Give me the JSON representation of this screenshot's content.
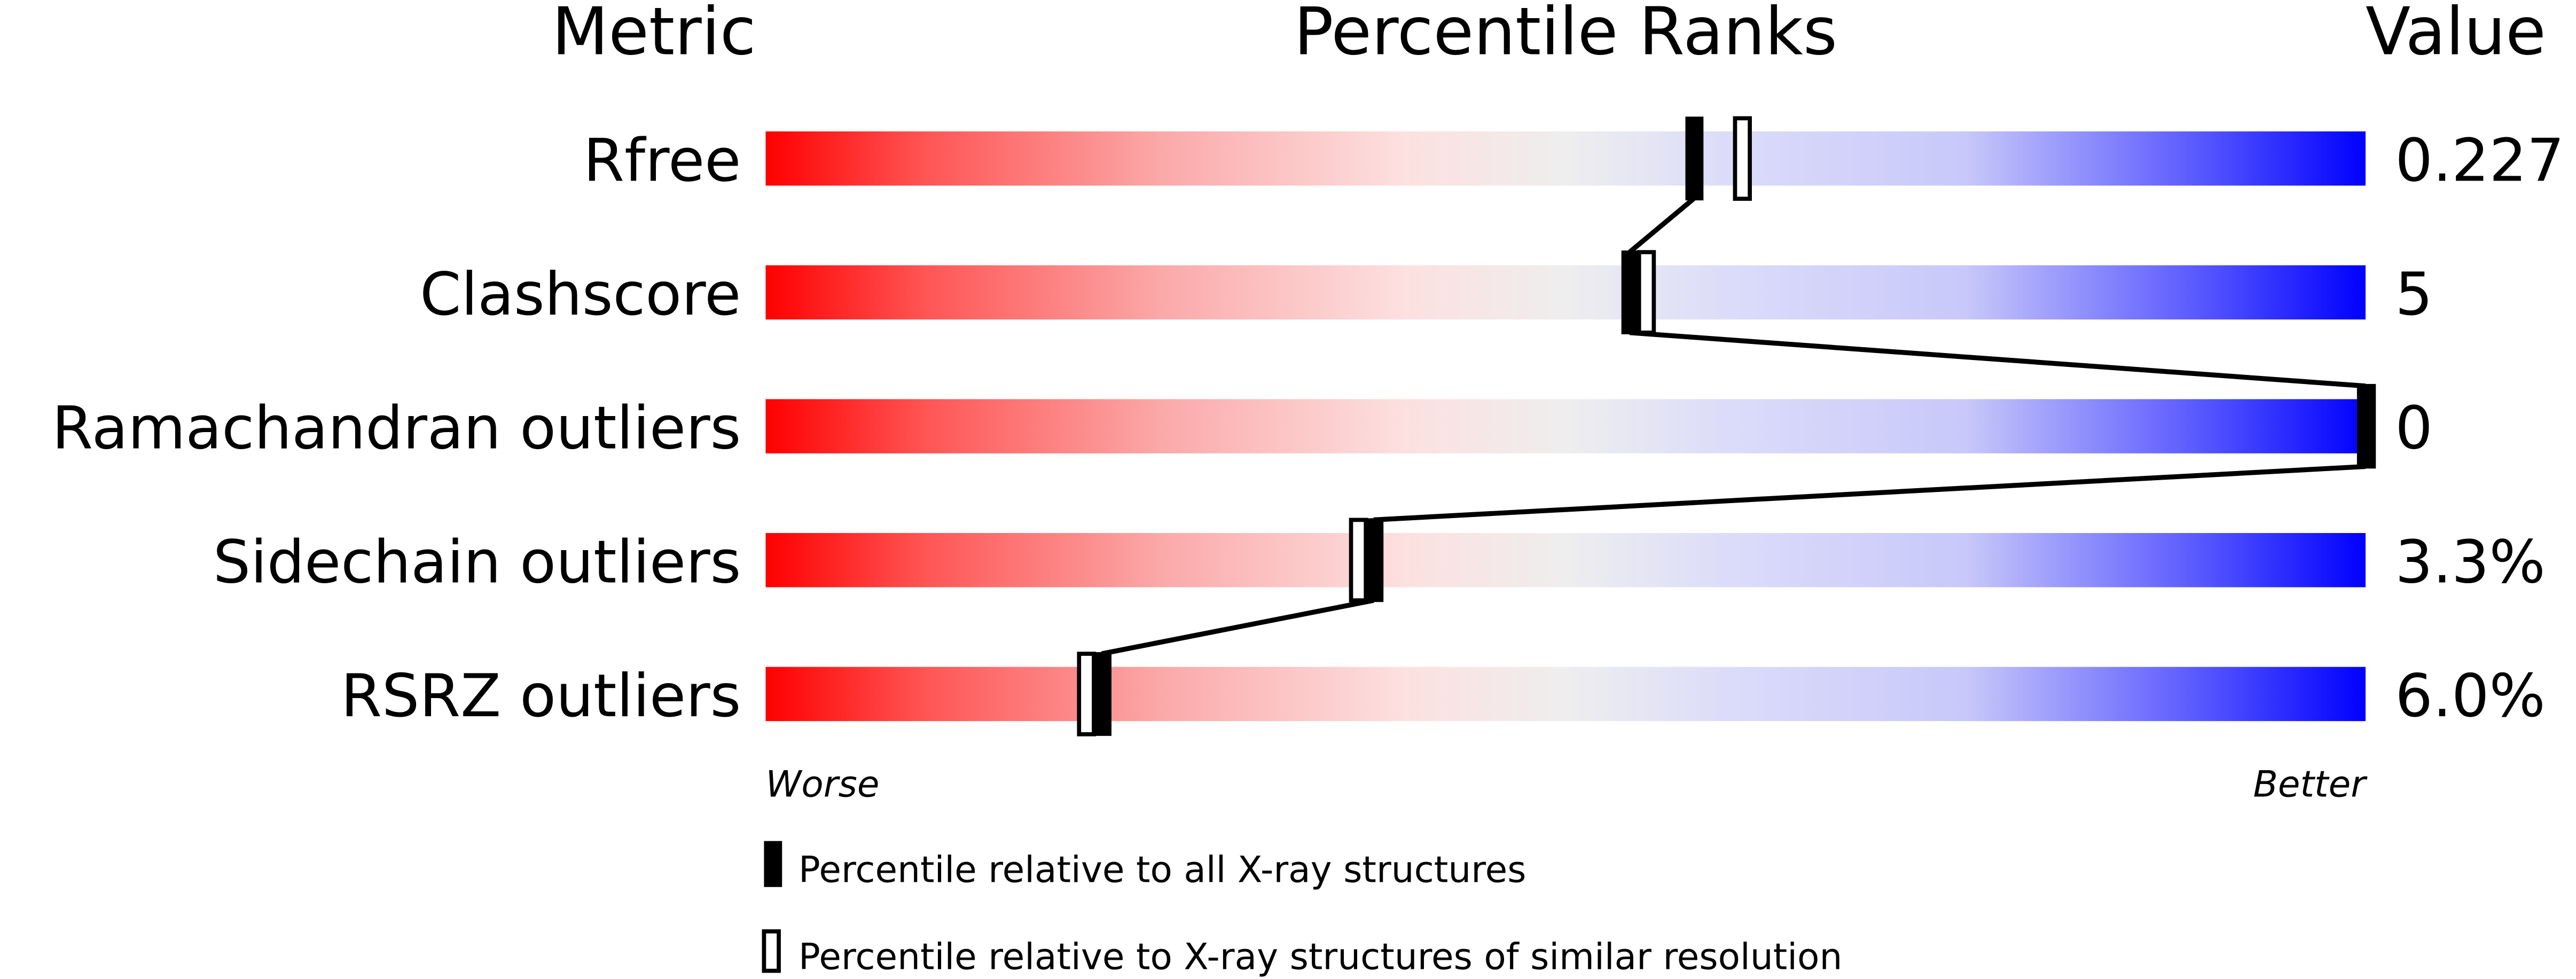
{
  "chart_data": {
    "type": "bar",
    "headers": {
      "metric": "Metric",
      "ranks": "Percentile Ranks",
      "value": "Value"
    },
    "categories": [
      "Rfree",
      "Clashscore",
      "Ramachandran outliers",
      "Sidechain outliers",
      "RSRZ outliers"
    ],
    "values_text": [
      "0.227",
      "5",
      "0",
      "3.3%",
      "6.0%"
    ],
    "series": [
      {
        "name": "Percentile relative to all X-ray structures",
        "marker": "filled",
        "values": [
          58,
          54,
          100,
          38,
          21
        ]
      },
      {
        "name": "Percentile relative to X-ray structures of similar resolution",
        "marker": "open",
        "values": [
          61,
          55,
          100,
          37,
          20
        ]
      }
    ],
    "xlim": [
      0,
      100
    ],
    "axis_left_label": "Worse",
    "axis_right_label": "Better",
    "colors": {
      "worse": "#ff0000",
      "mid": "#eeeeee",
      "better": "#0000ff",
      "marker": "#000000"
    }
  }
}
